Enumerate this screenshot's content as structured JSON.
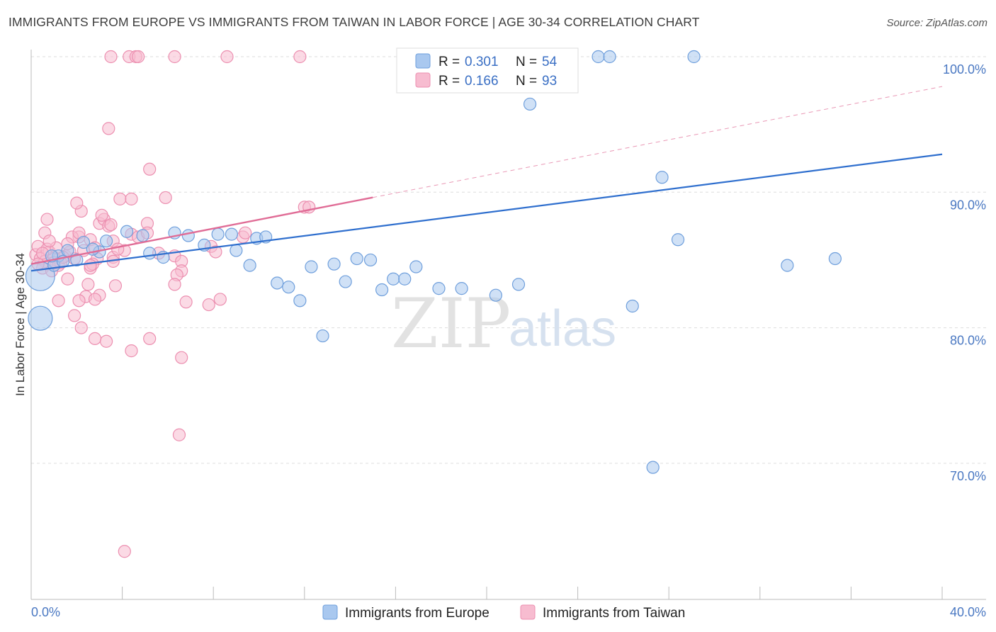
{
  "header": {
    "title": "IMMIGRANTS FROM EUROPE VS IMMIGRANTS FROM TAIWAN IN LABOR FORCE | AGE 30-34 CORRELATION CHART",
    "source": "Source: ZipAtlas.com"
  },
  "watermark": {
    "zip": "ZIP",
    "atlas": "atlas"
  },
  "legend": {
    "europe": {
      "r_label": "R =",
      "r_value": "0.301",
      "n_label": "N =",
      "n_value": "54"
    },
    "taiwan": {
      "r_label": "R =",
      "r_value": "0.166",
      "n_label": "N =",
      "n_value": "93"
    }
  },
  "bottom_legend": {
    "europe": "Immigrants from Europe",
    "taiwan": "Immigrants from Taiwan"
  },
  "colors": {
    "europe_fill": "#a9c8ef",
    "europe_stroke": "#6f9fdc",
    "europe_line": "#2f6fce",
    "taiwan_fill": "#f7bcd0",
    "taiwan_stroke": "#ec8fb0",
    "taiwan_line": "#e06c96",
    "grid": "#dddddd",
    "axis_text": "#4a78c2"
  },
  "chart_data": {
    "type": "scatter",
    "title": "IMMIGRANTS FROM EUROPE VS IMMIGRANTS FROM TAIWAN IN LABOR FORCE | AGE 30-34 CORRELATION CHART",
    "xlabel": "",
    "ylabel": "In Labor Force | Age 30-34",
    "xlim": [
      0,
      40
    ],
    "ylim": [
      61,
      101.5
    ],
    "x_tick_labels": {
      "min": "0.0%",
      "max": "40.0%"
    },
    "y_ticks": [
      {
        "value": 70,
        "label": "70.0%"
      },
      {
        "value": 80,
        "label": "80.0%"
      },
      {
        "value": 90,
        "label": "90.0%"
      },
      {
        "value": 100,
        "label": "100.0%"
      }
    ],
    "series": [
      {
        "name": "Immigrants from Europe",
        "trend": {
          "x0": 0,
          "y0": 84.2,
          "x1": 40,
          "y1": 92.8,
          "style": "solid",
          "x_end": 40
        },
        "points": [
          [
            0.4,
            83.8,
            2.4
          ],
          [
            0.4,
            80.7,
            2.0
          ],
          [
            1.2,
            85.3,
            1
          ],
          [
            1.6,
            85.7,
            1
          ],
          [
            2.3,
            86.3,
            1
          ],
          [
            3.3,
            86.4,
            1
          ],
          [
            4.2,
            87.1,
            1
          ],
          [
            4.9,
            86.8,
            1
          ],
          [
            6.3,
            87.0,
            1
          ],
          [
            6.9,
            86.8,
            1
          ],
          [
            7.6,
            86.1,
            1
          ],
          [
            8.2,
            86.9,
            1
          ],
          [
            8.8,
            86.9,
            1
          ],
          [
            5.2,
            85.5,
            1
          ],
          [
            5.8,
            85.2,
            1
          ],
          [
            9.0,
            85.7,
            1
          ],
          [
            9.9,
            86.6,
            1
          ],
          [
            10.3,
            86.7,
            1
          ],
          [
            9.6,
            84.6,
            1
          ],
          [
            10.8,
            83.3,
            1
          ],
          [
            11.3,
            83.0,
            1
          ],
          [
            11.8,
            82.0,
            1
          ],
          [
            12.3,
            84.5,
            1
          ],
          [
            13.3,
            84.7,
            1
          ],
          [
            13.8,
            83.4,
            1
          ],
          [
            14.3,
            85.1,
            1
          ],
          [
            14.9,
            85.0,
            1
          ],
          [
            12.8,
            79.4,
            1
          ],
          [
            15.4,
            82.8,
            1
          ],
          [
            15.9,
            83.6,
            1
          ],
          [
            16.4,
            83.6,
            1
          ],
          [
            16.9,
            84.5,
            1
          ],
          [
            17.9,
            82.9,
            1
          ],
          [
            18.9,
            82.9,
            1
          ],
          [
            20.4,
            82.4,
            1
          ],
          [
            21.4,
            83.2,
            1
          ],
          [
            21.9,
            96.5,
            1
          ],
          [
            22.4,
            100.0,
            1
          ],
          [
            24.9,
            100.0,
            1
          ],
          [
            25.4,
            100.0,
            1
          ],
          [
            29.1,
            100.0,
            1
          ],
          [
            17.4,
            100.0,
            1
          ],
          [
            27.7,
            91.1,
            1
          ],
          [
            28.4,
            86.5,
            1
          ],
          [
            26.4,
            81.6,
            1
          ],
          [
            33.2,
            84.6,
            1
          ],
          [
            35.3,
            85.1,
            1
          ],
          [
            27.3,
            69.7,
            1
          ],
          [
            1.0,
            84.6,
            1
          ],
          [
            2.0,
            85.0,
            1
          ],
          [
            0.9,
            85.3,
            1
          ],
          [
            3.0,
            85.6,
            1
          ],
          [
            1.4,
            84.9,
            1
          ],
          [
            2.7,
            85.8,
            1
          ]
        ]
      },
      {
        "name": "Immigrants from Taiwan",
        "trend": {
          "x0": 0,
          "y0": 84.7,
          "x1": 40,
          "y1": 97.8,
          "style": "solid",
          "x_end": 15.0,
          "dashed_after": true
        },
        "points": [
          [
            0.2,
            85.4,
            1
          ],
          [
            0.4,
            85.1,
            1
          ],
          [
            0.6,
            84.9,
            1
          ],
          [
            0.8,
            85.6,
            1
          ],
          [
            1.0,
            85.2,
            1
          ],
          [
            1.2,
            84.6,
            1
          ],
          [
            0.3,
            86.0,
            1
          ],
          [
            0.7,
            85.8,
            1
          ],
          [
            1.1,
            85.9,
            1
          ],
          [
            1.5,
            85.3,
            1
          ],
          [
            1.9,
            85.1,
            1
          ],
          [
            0.5,
            84.4,
            1
          ],
          [
            0.9,
            84.2,
            1
          ],
          [
            0.6,
            87.0,
            1
          ],
          [
            0.7,
            88.0,
            1
          ],
          [
            1.3,
            84.8,
            1
          ],
          [
            1.7,
            85.6,
            1
          ],
          [
            2.3,
            85.7,
            1
          ],
          [
            2.1,
            86.7,
            1
          ],
          [
            1.8,
            86.7,
            1
          ],
          [
            2.6,
            86.5,
            1
          ],
          [
            2.8,
            85.9,
            1
          ],
          [
            2.9,
            85.1,
            1
          ],
          [
            2.6,
            84.4,
            1
          ],
          [
            2.5,
            83.2,
            1
          ],
          [
            2.4,
            82.3,
            1
          ],
          [
            2.1,
            82.0,
            1
          ],
          [
            1.9,
            80.9,
            1
          ],
          [
            2.2,
            80.0,
            1
          ],
          [
            1.6,
            83.6,
            1
          ],
          [
            1.2,
            82.0,
            1
          ],
          [
            2.7,
            84.7,
            1
          ],
          [
            3.0,
            87.7,
            1
          ],
          [
            3.2,
            88.0,
            1
          ],
          [
            3.4,
            87.5,
            1
          ],
          [
            3.1,
            88.3,
            1
          ],
          [
            2.2,
            88.6,
            1
          ],
          [
            2.0,
            89.2,
            1
          ],
          [
            3.6,
            86.4,
            1
          ],
          [
            3.5,
            87.6,
            1
          ],
          [
            3.6,
            85.2,
            1
          ],
          [
            3.6,
            84.9,
            1
          ],
          [
            3.7,
            83.1,
            1
          ],
          [
            3.9,
            89.5,
            1
          ],
          [
            4.4,
            89.5,
            1
          ],
          [
            4.4,
            86.9,
            1
          ],
          [
            4.7,
            86.7,
            1
          ],
          [
            5.1,
            87.7,
            1
          ],
          [
            5.2,
            91.7,
            1
          ],
          [
            5.6,
            85.5,
            1
          ],
          [
            5.9,
            89.6,
            1
          ],
          [
            6.3,
            85.3,
            1
          ],
          [
            6.6,
            84.9,
            1
          ],
          [
            6.6,
            84.2,
            1
          ],
          [
            6.4,
            83.9,
            1
          ],
          [
            6.3,
            83.2,
            1
          ],
          [
            6.8,
            81.9,
            1
          ],
          [
            6.6,
            77.8,
            1
          ],
          [
            6.5,
            72.1,
            1
          ],
          [
            5.2,
            79.2,
            1
          ],
          [
            4.4,
            78.3,
            1
          ],
          [
            3.3,
            79.0,
            1
          ],
          [
            2.8,
            79.2,
            1
          ],
          [
            3.4,
            94.7,
            1
          ],
          [
            3.5,
            100.0,
            1
          ],
          [
            4.3,
            100.0,
            1
          ],
          [
            4.6,
            100.0,
            1
          ],
          [
            4.7,
            100.0,
            1
          ],
          [
            6.3,
            100.0,
            1
          ],
          [
            8.6,
            100.0,
            1
          ],
          [
            11.8,
            100.0,
            1
          ],
          [
            7.8,
            81.7,
            1
          ],
          [
            8.3,
            82.1,
            1
          ],
          [
            7.9,
            86.0,
            1
          ],
          [
            8.1,
            85.6,
            1
          ],
          [
            9.3,
            86.7,
            1
          ],
          [
            9.4,
            87.0,
            1
          ],
          [
            12.0,
            88.9,
            1
          ],
          [
            12.2,
            88.9,
            1
          ],
          [
            3.0,
            82.4,
            1
          ],
          [
            2.8,
            82.1,
            1
          ],
          [
            2.6,
            84.6,
            1
          ],
          [
            0.3,
            84.7,
            1
          ],
          [
            0.5,
            85.5,
            1
          ],
          [
            1.4,
            85.2,
            1
          ],
          [
            2.1,
            87.0,
            1
          ],
          [
            5.1,
            87.0,
            1
          ],
          [
            4.1,
            85.7,
            1
          ],
          [
            3.8,
            85.8,
            1
          ],
          [
            4.1,
            63.5,
            1
          ],
          [
            1.0,
            84.8,
            1
          ],
          [
            1.6,
            86.2,
            1
          ],
          [
            0.8,
            86.4,
            1
          ]
        ]
      }
    ]
  },
  "axis": {
    "ylabel": "In Labor Force | Age 30-34"
  }
}
